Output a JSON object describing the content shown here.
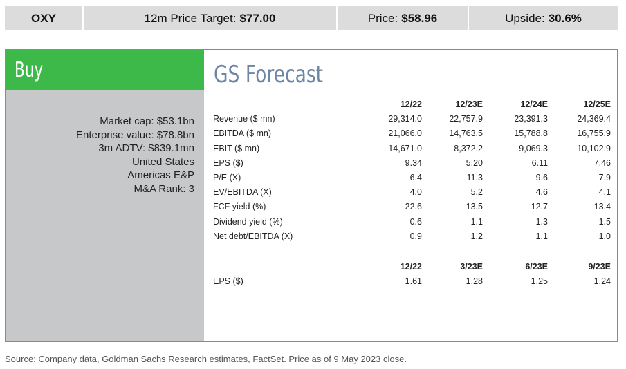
{
  "header": {
    "ticker": "OXY",
    "price_target_label": "12m Price Target:",
    "price_target_value": "$77.00",
    "price_label": "Price:",
    "price_value": "$58.96",
    "upside_label": "Upside:",
    "upside_value": "30.6%"
  },
  "rating": "Buy",
  "company_meta": [
    "Market cap: $53.1bn",
    "Enterprise value: $78.8bn",
    "3m ADTV: $839.1mn",
    "United States",
    "Americas E&P",
    "M&A Rank: 3"
  ],
  "forecast": {
    "title": "GS Forecast",
    "annual": {
      "columns": [
        "12/22",
        "12/23E",
        "12/24E",
        "12/25E"
      ],
      "rows": [
        {
          "label": "Revenue ($ mn)",
          "values": [
            "29,314.0",
            "22,757.9",
            "23,391.3",
            "24,369.4"
          ]
        },
        {
          "label": "EBITDA ($ mn)",
          "values": [
            "21,066.0",
            "14,763.5",
            "15,788.8",
            "16,755.9"
          ]
        },
        {
          "label": "EBIT ($ mn)",
          "values": [
            "14,671.0",
            "8,372.2",
            "9,069.3",
            "10,102.9"
          ]
        },
        {
          "label": "EPS ($)",
          "values": [
            "9.34",
            "5.20",
            "6.11",
            "7.46"
          ]
        },
        {
          "label": "P/E (X)",
          "values": [
            "6.4",
            "11.3",
            "9.6",
            "7.9"
          ]
        },
        {
          "label": "EV/EBITDA (X)",
          "values": [
            "4.0",
            "5.2",
            "4.6",
            "4.1"
          ]
        },
        {
          "label": "FCF yield (%)",
          "values": [
            "22.6",
            "13.5",
            "12.7",
            "13.4"
          ]
        },
        {
          "label": "Dividend yield (%)",
          "values": [
            "0.6",
            "1.1",
            "1.3",
            "1.5"
          ]
        },
        {
          "label": "Net debt/EBITDA (X)",
          "values": [
            "0.9",
            "1.2",
            "1.1",
            "1.0"
          ]
        }
      ]
    },
    "quarterly": {
      "columns": [
        "12/22",
        "3/23E",
        "6/23E",
        "9/23E"
      ],
      "rows": [
        {
          "label": "EPS ($)",
          "values": [
            "1.61",
            "1.28",
            "1.25",
            "1.24"
          ]
        }
      ]
    }
  },
  "source": "Source: Company data, Goldman Sachs Research estimates, FactSet. Price as of 9 May 2023 close.",
  "colors": {
    "buy_green": "#3db94a",
    "left_panel_gray": "#c7c8ca",
    "header_gray": "#dcdcdc",
    "title_blue": "#6c86a5"
  }
}
